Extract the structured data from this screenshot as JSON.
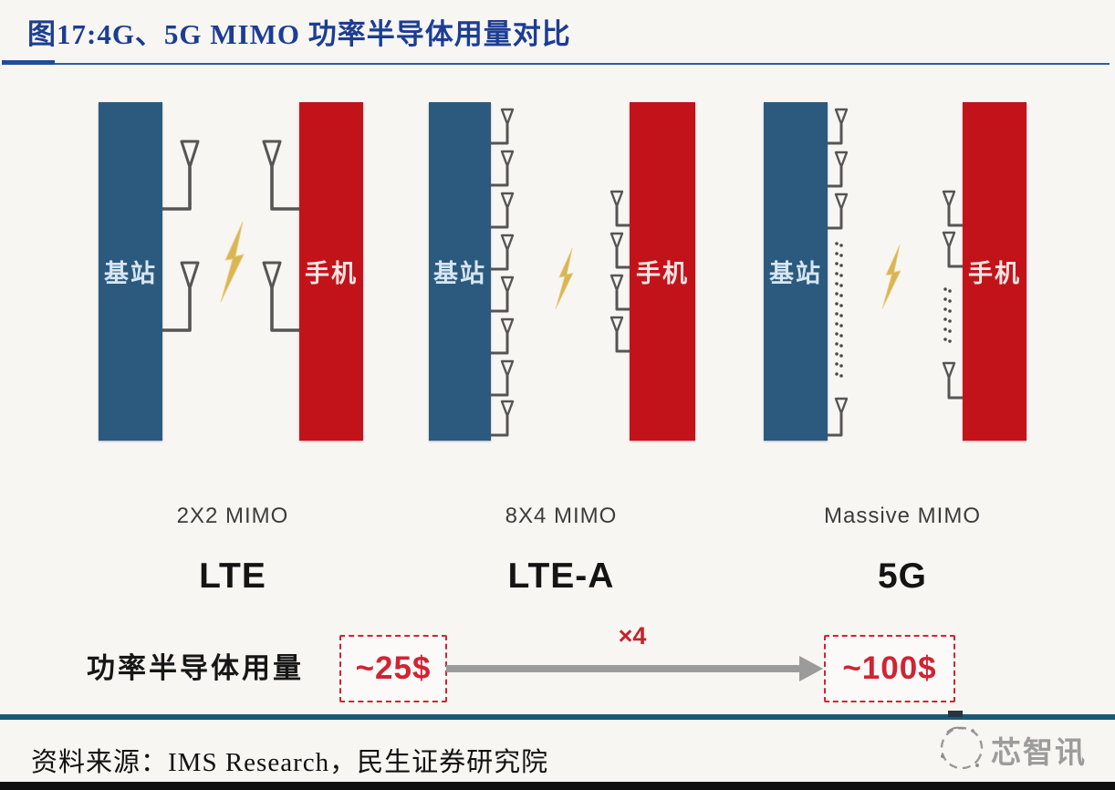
{
  "title": "图17:4G、5G MIMO 功率半导体用量对比",
  "groups": [
    {
      "base_label": "基站",
      "phone_label": "手机",
      "mimo_label": "2X2 MIMO",
      "tech_label": "LTE",
      "base_antennas": 2,
      "phone_antennas": 2
    },
    {
      "base_label": "基站",
      "phone_label": "手机",
      "mimo_label": "8X4 MIMO",
      "tech_label": "LTE-A",
      "base_antennas": 8,
      "phone_antennas": 4
    },
    {
      "base_label": "基站",
      "phone_label": "手机",
      "mimo_label": "Massive MIMO",
      "tech_label": "5G",
      "base_antennas": "many (3 shown + … + 1)",
      "phone_antennas": "many (2 shown + … + 1)"
    }
  ],
  "comparison": {
    "label": "功率半导体用量",
    "lte_cost": "~25$",
    "multiplier": "×4",
    "fiveg_cost": "~100$"
  },
  "footer": {
    "source": "资料来源：IMS Research，民生证券研究院",
    "logo_text": "芯智讯"
  },
  "colors": {
    "title_blue": "#1c3d92",
    "base_bar_blue": "#2b5a7e",
    "phone_bar_red": "#c2131b",
    "accent_red": "#cf2433",
    "arrow_gray": "#9b9b9b",
    "lightning_gold": "#d9b24d",
    "footer_rule_teal": "#1b5874"
  }
}
